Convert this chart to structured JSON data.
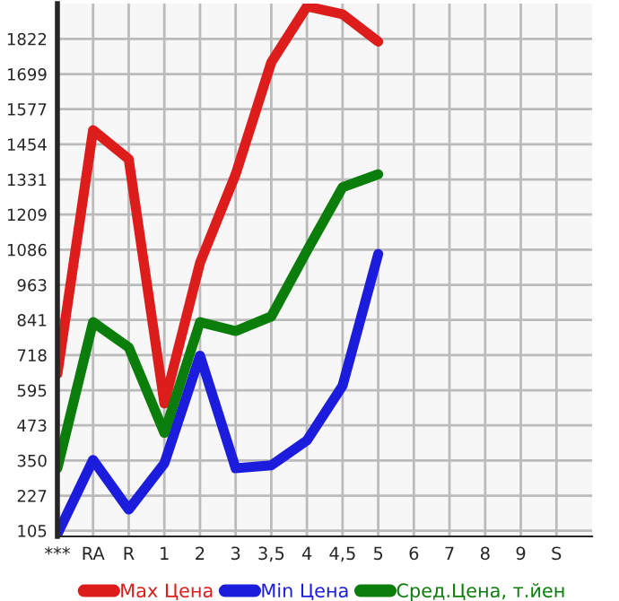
{
  "chart_data": {
    "type": "line",
    "categories": [
      "***",
      "RA",
      "R",
      "1",
      "2",
      "3",
      "3,5",
      "4",
      "4,5",
      "5",
      "6",
      "7",
      "8",
      "9",
      "S"
    ],
    "series": [
      {
        "name": "Max Цена",
        "color": "#dd1c1c",
        "values": [
          653,
          1503,
          1402,
          549,
          1040,
          1349,
          1740,
          1935,
          1908,
          1812,
          null,
          null,
          null,
          null,
          null
        ]
      },
      {
        "name": "Min Цена",
        "color": "#1c1cdd",
        "values": [
          93,
          352,
          179,
          340,
          716,
          323,
          333,
          420,
          611,
          1071,
          null,
          null,
          null,
          null,
          null
        ]
      },
      {
        "name": "Сред.Цена, т.йен",
        "color": "#0a7d0a",
        "values": [
          323,
          833,
          745,
          446,
          833,
          802,
          853,
          1082,
          1304,
          1349,
          null,
          null,
          null,
          null,
          null
        ]
      }
    ],
    "ylim": [
      85,
      1945
    ],
    "yticks": [
      105,
      227,
      350,
      473,
      595,
      718,
      841,
      963,
      1086,
      1209,
      1331,
      1454,
      1577,
      1699,
      1822
    ],
    "grid": true,
    "legend": "bottom",
    "marker": "none",
    "line_style": "solid"
  }
}
